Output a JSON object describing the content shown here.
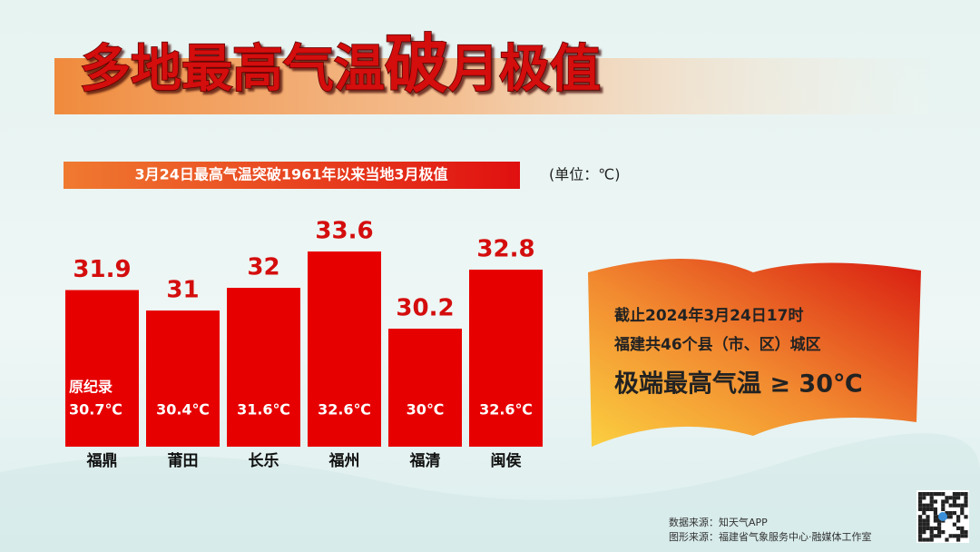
{
  "chart_data": {
    "type": "bar",
    "title_parts": [
      "多地最高气温",
      "破",
      "月极值"
    ],
    "subtitle": "3月24日最高气温突破1961年以来当地3月极值",
    "unit": "(单位：℃)",
    "categories": [
      "福鼎",
      "莆田",
      "长乐",
      "福州",
      "福清",
      "闽侯"
    ],
    "values": [
      31.9,
      31,
      32,
      33.6,
      30.2,
      32.8
    ],
    "color": "#e60000",
    "ylim": [
      25,
      34
    ],
    "record_name": "原纪录",
    "record_labels": [
      "30.7℃",
      "30.4℃",
      "31.6℃",
      "32.6℃",
      "30℃",
      "32.6℃"
    ]
  },
  "panel": {
    "lines": [
      "截止2024年3月24日17时",
      "福建共46个县（市、区）城区"
    ],
    "highlight": "极端最高气温 ≥ 30℃"
  },
  "sources": [
    "数据来源：知天气APP",
    "图形来源：福建省气象服务中心·融媒体工作室"
  ]
}
